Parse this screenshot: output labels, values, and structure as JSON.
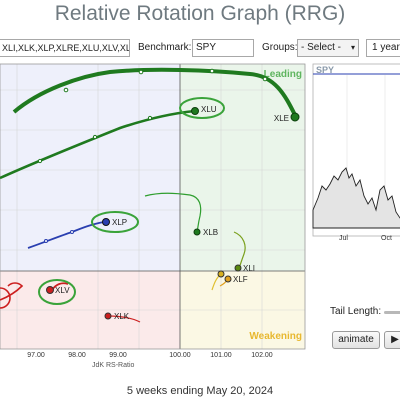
{
  "page_title": "Relative Rotation Graph (RRG)",
  "toolbar": {
    "symbols_value": "XLI,XLK,XLP,XLRE,XLU,XLV,XL",
    "benchmark_label": "Benchmark:",
    "benchmark_value": "SPY",
    "groups_label": "Groups:",
    "groups_value": "- Select -",
    "period_value": "1 year"
  },
  "rrg": {
    "x_axis_label": "JdK RS-Ratio",
    "x_ticks": [
      "97.00",
      "98.00",
      "99.00",
      "100.00",
      "101.00",
      "102.00"
    ],
    "quadrants": {
      "leading": "Leading",
      "weakening": "Weakening"
    },
    "sectors": [
      {
        "name": "XLE",
        "color": "#1f7a1f"
      },
      {
        "name": "XLU",
        "color": "#1f7a1f"
      },
      {
        "name": "XLP",
        "color": "#2a3fb0"
      },
      {
        "name": "XLB",
        "color": "#2f9e2f"
      },
      {
        "name": "XLI",
        "color": "#7aa01c"
      },
      {
        "name": "XLY",
        "color": "#d8b020"
      },
      {
        "name": "XLF",
        "color": "#e0a020"
      },
      {
        "name": "XLV",
        "color": "#cc1f1f"
      },
      {
        "name": "XLK",
        "color": "#cc1f1f"
      }
    ]
  },
  "side_chart": {
    "symbol": "SPY",
    "x_ticks": [
      "Jul",
      "Oct"
    ]
  },
  "controls": {
    "tail_length_label": "Tail Length:",
    "animate_label": "animate",
    "play_icon": "play-icon"
  },
  "footer": "5 weeks ending May 20, 2024"
}
